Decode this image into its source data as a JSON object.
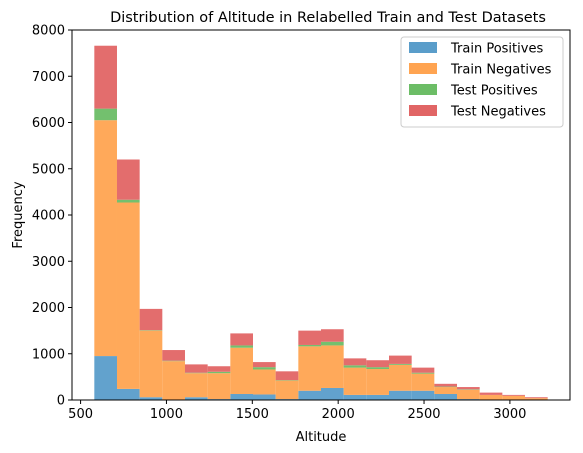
{
  "chart_data": {
    "type": "bar",
    "stacked": true,
    "title": "Distribution of Altitude in Relabelled Train and Test Datasets",
    "xlabel": "Altitude",
    "ylabel": "Frequency",
    "xlim": [
      450,
      3350
    ],
    "ylim": [
      0,
      8000
    ],
    "xticks": [
      500,
      1000,
      1500,
      2000,
      2500,
      3000
    ],
    "yticks": [
      0,
      1000,
      2000,
      3000,
      4000,
      5000,
      6000,
      7000,
      8000
    ],
    "grid": false,
    "legend_position": "top-right",
    "bin_edges": [
      580,
      712,
      844,
      976,
      1108,
      1240,
      1372,
      1504,
      1636,
      1768,
      1900,
      2032,
      2164,
      2296,
      2428,
      2560,
      2692,
      2824,
      2956,
      3088,
      3220
    ],
    "series": [
      {
        "name": "Train Positives",
        "color": "#5a9dca",
        "values": [
          950,
          240,
          60,
          10,
          60,
          20,
          130,
          120,
          20,
          200,
          260,
          110,
          110,
          200,
          200,
          130,
          20,
          10,
          0,
          0
        ]
      },
      {
        "name": "Train Negatives",
        "color": "#ffa451",
        "values": [
          5100,
          4030,
          1440,
          830,
          520,
          560,
          1000,
          540,
          400,
          960,
          920,
          590,
          560,
          560,
          370,
          150,
          200,
          100,
          90,
          40
        ]
      },
      {
        "name": "Test Positives",
        "color": "#6cbd66",
        "values": [
          250,
          60,
          10,
          10,
          10,
          30,
          50,
          50,
          10,
          30,
          80,
          50,
          40,
          20,
          20,
          10,
          10,
          0,
          0,
          0
        ]
      },
      {
        "name": "Test Negatives",
        "color": "#e16565",
        "values": [
          1360,
          870,
          460,
          230,
          180,
          120,
          260,
          110,
          190,
          310,
          270,
          150,
          150,
          180,
          110,
          60,
          50,
          50,
          20,
          20
        ]
      }
    ]
  }
}
